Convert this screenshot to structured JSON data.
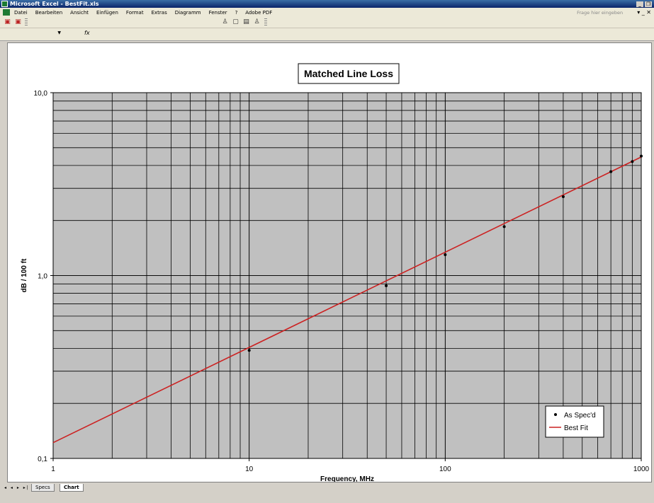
{
  "window": {
    "title": "Microsoft Excel - BestFit.xls",
    "controls": [
      "_",
      "❐"
    ]
  },
  "menu": {
    "items": [
      "Datei",
      "Bearbeiten",
      "Ansicht",
      "Einfügen",
      "Format",
      "Extras",
      "Diagramm",
      "Fenster",
      "?",
      "Adobe PDF"
    ],
    "help_placeholder": "Frage hier eingeben",
    "doc_controls": "▾ _ ✕"
  },
  "formula": {
    "fx": "fx"
  },
  "sheet_tabs": {
    "nav": "◂ ◂ ▸ ▸|",
    "tabs": [
      {
        "label": "Specs",
        "active": false
      },
      {
        "label": "Chart",
        "active": true
      }
    ]
  },
  "chart_data": {
    "type": "scatter",
    "title": "Matched Line Loss",
    "xlabel": "Frequency, MHz",
    "ylabel": "dB / 100 ft",
    "x_scale": "log",
    "y_scale": "log",
    "xlim": [
      1,
      1000
    ],
    "ylim": [
      0.1,
      10
    ],
    "x_tick_labels": [
      "1",
      "10",
      "100",
      "1000"
    ],
    "y_tick_labels": [
      "0,1",
      "1,0",
      "10,0"
    ],
    "grid": true,
    "plot_background": "#c0c0c0",
    "legend": {
      "placement": "bottom-right"
    },
    "series": [
      {
        "name": "As Spec'd",
        "marker": "dot",
        "color": "#000000",
        "x": [
          10,
          50,
          100,
          200,
          400,
          700,
          900,
          1000
        ],
        "y": [
          0.39,
          0.88,
          1.3,
          1.85,
          2.7,
          3.7,
          4.2,
          4.5
        ]
      },
      {
        "name": "Best Fit",
        "marker": "line",
        "color": "#cc2222",
        "x": [
          1,
          1000
        ],
        "y": [
          0.122,
          4.45
        ]
      }
    ]
  }
}
